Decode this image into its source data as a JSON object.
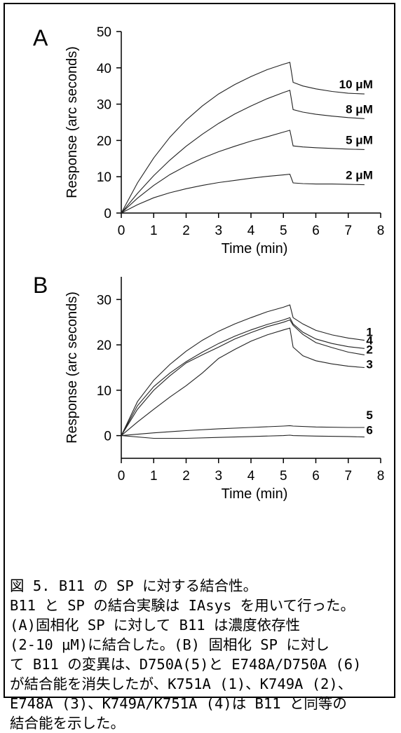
{
  "chart_data": [
    {
      "panel": "A",
      "type": "line",
      "xlabel": "Time (min)",
      "ylabel": "Response (arc seconds)",
      "xlim": [
        0,
        8
      ],
      "ylim": [
        0,
        50
      ],
      "xticks": [
        0,
        1,
        2,
        3,
        4,
        5,
        6,
        7,
        8
      ],
      "yticks": [
        0,
        10,
        20,
        30,
        40,
        50
      ],
      "grid": false,
      "series": [
        {
          "name": "10 μM",
          "x": [
            0,
            0.5,
            1,
            1.5,
            2,
            2.5,
            3,
            3.5,
            4,
            4.5,
            5,
            5.2,
            5.3,
            5.6,
            6,
            6.5,
            7,
            7.5
          ],
          "y": [
            0,
            8.3,
            15.2,
            20.9,
            25.6,
            29.5,
            32.8,
            35.4,
            37.6,
            39.5,
            41,
            41.5,
            36,
            35,
            34.2,
            33.5,
            33,
            32.8
          ]
        },
        {
          "name": "8 μM",
          "x": [
            0,
            0.5,
            1,
            1.5,
            2,
            2.5,
            3,
            3.5,
            4,
            4.5,
            5,
            5.2,
            5.3,
            5.6,
            6,
            6.5,
            7,
            7.5
          ],
          "y": [
            0,
            5.4,
            10.3,
            14.6,
            18.4,
            21.7,
            24.7,
            27.3,
            29.5,
            31.5,
            33.2,
            33.8,
            28.5,
            27.8,
            27.2,
            26.7,
            26.3,
            26
          ]
        },
        {
          "name": "5 μM",
          "x": [
            0,
            0.5,
            1,
            1.5,
            2,
            2.5,
            3,
            3.5,
            4,
            4.5,
            5,
            5.2,
            5.3,
            5.6,
            6,
            6.5,
            7,
            7.5
          ],
          "y": [
            0,
            4.1,
            7.6,
            10.6,
            13,
            15.1,
            16.9,
            18.4,
            19.8,
            21,
            22.3,
            22.8,
            18.5,
            18.2,
            18,
            17.8,
            17.6,
            17.5
          ]
        },
        {
          "name": "2 μM",
          "x": [
            0,
            0.5,
            1,
            1.5,
            2,
            2.5,
            3,
            3.5,
            4,
            4.5,
            5,
            5.2,
            5.3,
            5.6,
            6,
            6.5,
            7,
            7.5
          ],
          "y": [
            0,
            2.3,
            4.2,
            5.6,
            6.7,
            7.6,
            8.4,
            9,
            9.6,
            10.1,
            10.5,
            10.7,
            8.3,
            8.1,
            8,
            8,
            7.9,
            7.8
          ]
        }
      ]
    },
    {
      "panel": "B",
      "type": "line",
      "xlabel": "Time (min)",
      "ylabel": "Response (arc seconds)",
      "xlim": [
        0,
        8
      ],
      "ylim": [
        -5,
        35
      ],
      "xticks": [
        0,
        1,
        2,
        3,
        4,
        5,
        6,
        7,
        8
      ],
      "yticks": [
        0,
        10,
        20,
        30
      ],
      "grid": false,
      "series": [
        {
          "name": "1",
          "x": [
            0,
            0.5,
            1,
            1.5,
            2,
            2.5,
            3,
            3.5,
            4,
            4.5,
            5,
            5.2,
            5.3,
            5.6,
            6,
            6.5,
            7,
            7.5
          ],
          "y": [
            0,
            7.5,
            12.2,
            15.7,
            18.6,
            21,
            23,
            24.6,
            26,
            27.3,
            28.3,
            28.8,
            26,
            24.6,
            23.2,
            22.2,
            21.5,
            21
          ]
        },
        {
          "name": "4",
          "x": [
            0,
            0.5,
            1,
            1.5,
            2,
            2.5,
            3,
            3.5,
            4,
            4.5,
            5,
            5.2,
            5.3,
            5.6,
            6,
            6.5,
            7,
            7.5
          ],
          "y": [
            0,
            6.6,
            10.8,
            13.8,
            16.3,
            18.4,
            20.3,
            21.9,
            23.3,
            24.5,
            25.5,
            26,
            24.6,
            22.8,
            21.3,
            20.3,
            19.6,
            19.2
          ]
        },
        {
          "name": "2",
          "x": [
            0,
            0.5,
            1,
            1.5,
            2,
            2.5,
            3,
            3.5,
            4,
            4.5,
            5,
            5.2,
            5.3,
            5.6,
            6,
            6.5,
            7,
            7.5
          ],
          "y": [
            0,
            5.8,
            10,
            13.2,
            16,
            17.8,
            19.5,
            21.3,
            22.7,
            24,
            25,
            25.5,
            24.3,
            22.3,
            20.5,
            19.4,
            18.4,
            17.8
          ]
        },
        {
          "name": "3",
          "x": [
            0,
            0.5,
            1,
            1.5,
            2,
            2.5,
            3,
            3.5,
            4,
            4.5,
            5,
            5.2,
            5.3,
            5.6,
            6,
            6.5,
            7,
            7.5
          ],
          "y": [
            0,
            3,
            5.8,
            8.5,
            11,
            13.8,
            17,
            19,
            20.8,
            22.2,
            23.3,
            23.7,
            19.5,
            17.6,
            16.5,
            15.8,
            15.3,
            15
          ]
        },
        {
          "name": "5",
          "x": [
            0,
            1,
            2,
            3,
            4,
            5,
            5.2,
            5.3,
            6,
            7,
            7.5
          ],
          "y": [
            0,
            0.6,
            1.1,
            1.5,
            1.8,
            2.1,
            2.2,
            2.1,
            1.9,
            1.8,
            1.8
          ]
        },
        {
          "name": "6",
          "x": [
            0,
            1,
            2,
            3,
            4,
            5,
            5.2,
            5.3,
            6,
            7,
            7.5
          ],
          "y": [
            0,
            -0.6,
            -0.6,
            -0.4,
            -0.2,
            0,
            0.1,
            0,
            -0.1,
            -0.2,
            -0.3
          ]
        }
      ]
    }
  ],
  "caption": {
    "lines": [
      "図 5. B11 の SP に対する結合性。",
      "B11 と SP の結合実験は IAsys を用いて行った。",
      "(A)固相化 SP に対して B11 は濃度依存性",
      "(2-10 μM)に結合した。(B) 固相化 SP に対し",
      "て B11 の変異は、D750A(5)と E748A/D750A (6)",
      "が結合能を消失したが、K751A (1)、K749A (2)、",
      "E748A (3)、K749A/K751A (4)は B11 と同等の",
      "結合能を示した。"
    ]
  }
}
